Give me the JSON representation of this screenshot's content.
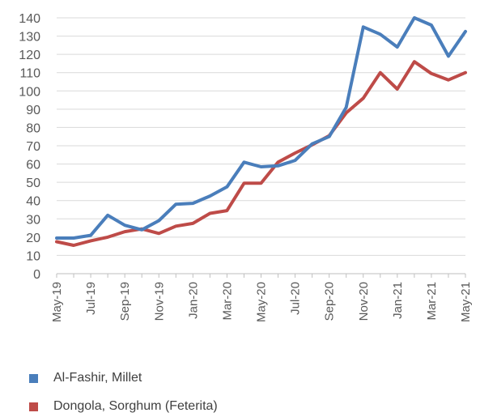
{
  "chart_data": {
    "type": "line",
    "categories": [
      "May-19",
      "Jun-19",
      "Jul-19",
      "Aug-19",
      "Sep-19",
      "Oct-19",
      "Nov-19",
      "Dec-19",
      "Jan-20",
      "Feb-20",
      "Mar-20",
      "Apr-20",
      "May-20",
      "Jun-20",
      "Jul-20",
      "Aug-20",
      "Sep-20",
      "Oct-20",
      "Nov-20",
      "Dec-20",
      "Jan-21",
      "Feb-21",
      "Mar-21",
      "Apr-21",
      "May-21"
    ],
    "tick_labels": [
      "May-19",
      "Jul-19",
      "Sep-19",
      "Nov-19",
      "Jan-20",
      "Mar-20",
      "May-20",
      "Jul-20",
      "Sep-20",
      "Nov-20",
      "Jan-21",
      "Mar-21",
      "May-21"
    ],
    "series": [
      {
        "name": "Al-Fashir, Millet",
        "color": "#4a7ebb",
        "values": [
          19.5,
          19.5,
          21,
          32,
          26.5,
          24,
          29,
          38,
          38.5,
          42.5,
          47.5,
          61,
          58.5,
          59,
          62,
          71,
          75,
          91,
          135,
          131,
          124,
          140,
          136,
          119,
          132.5
        ]
      },
      {
        "name": "Dongola, Sorghum (Feterita)",
        "color": "#be4b48",
        "values": [
          17.5,
          15.5,
          18,
          20,
          23,
          24.5,
          22,
          26,
          27.5,
          33,
          34.5,
          49.5,
          49.5,
          61,
          66,
          70.5,
          75.5,
          88,
          96,
          110,
          101,
          116,
          109.5,
          106,
          110
        ]
      }
    ],
    "y_ticks": [
      "0",
      "10",
      "20",
      "30",
      "40",
      "50",
      "60",
      "70",
      "80",
      "90",
      "100",
      "110",
      "120",
      "130",
      "140"
    ],
    "ylim": [
      0,
      140
    ],
    "grid": true,
    "legend_position": "bottom"
  }
}
